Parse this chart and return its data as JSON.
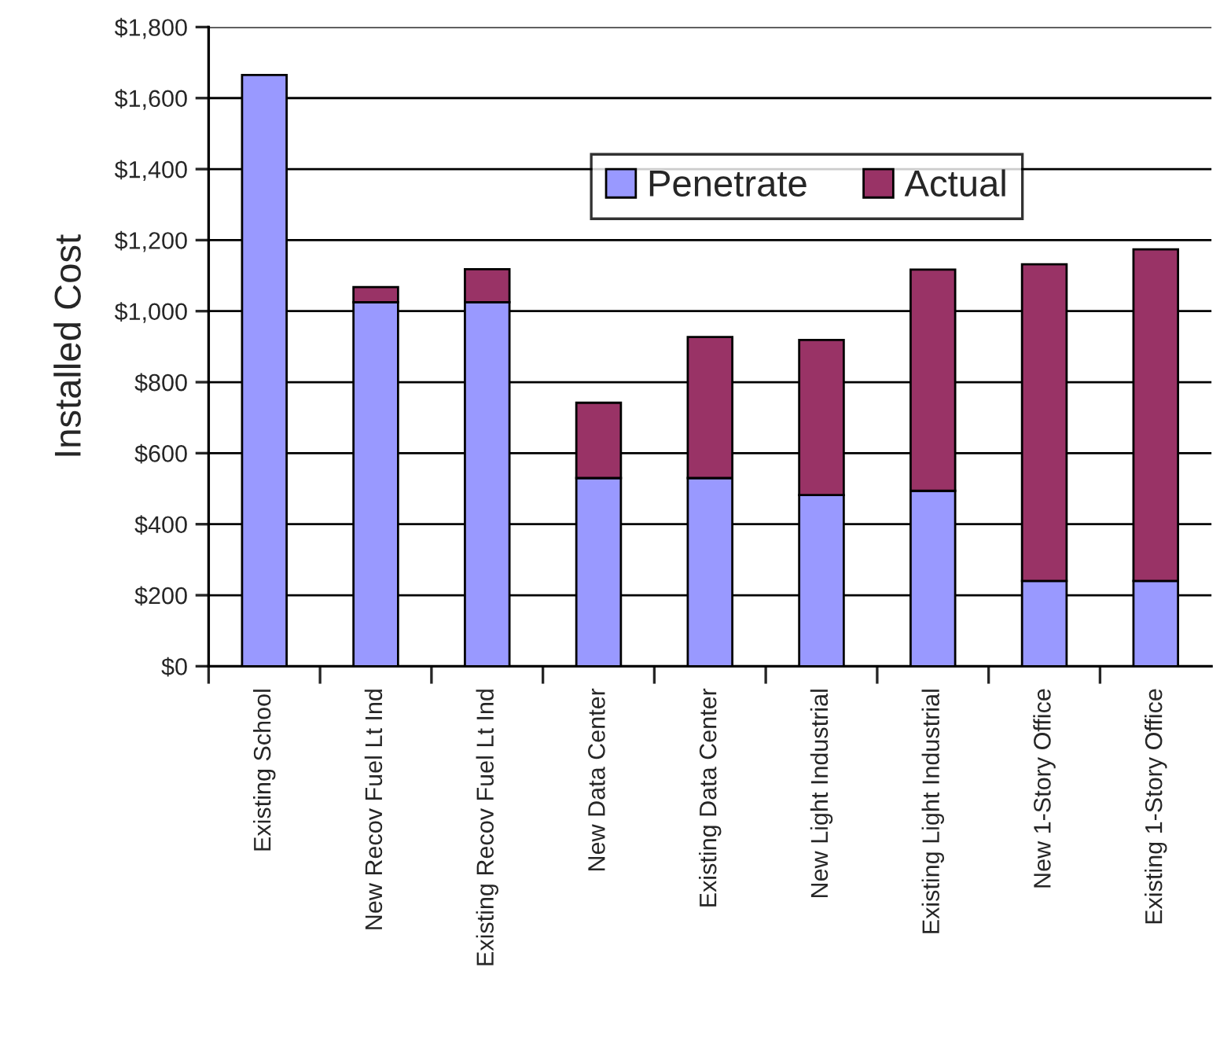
{
  "chart_data": {
    "type": "bar",
    "stacked": true,
    "ylabel": "Installed Cost",
    "categories": [
      "Existing School",
      "New Recov Fuel Lt Ind",
      "Existing Recov Fuel Lt Ind",
      "New Data Center",
      "Existing Data Center",
      "New Light Industrial",
      "Existing Light Industrial",
      "New 1-Story Office",
      "Existing 1-Story Office"
    ],
    "series": [
      {
        "name": "Penetrate",
        "color": "#9999ff",
        "values": [
          1665,
          1025,
          1025,
          530,
          530,
          482,
          494,
          240,
          240
        ]
      },
      {
        "name": "Actual",
        "color": "#993366",
        "values": [
          null,
          43,
          93,
          212,
          397,
          437,
          623,
          892,
          934
        ]
      }
    ],
    "ylim": [
      0,
      1800
    ],
    "yticks": [
      {
        "value": 0,
        "label": "$0"
      },
      {
        "value": 200,
        "label": "$200"
      },
      {
        "value": 400,
        "label": "$400"
      },
      {
        "value": 600,
        "label": "$600"
      },
      {
        "value": 800,
        "label": "$800"
      },
      {
        "value": 1000,
        "label": "$1,000"
      },
      {
        "value": 1200,
        "label": "$1,200"
      },
      {
        "value": 1400,
        "label": "$1,400"
      },
      {
        "value": 1600,
        "label": "$1,600"
      },
      {
        "value": 1800,
        "label": "$1,800"
      }
    ],
    "grid": "y",
    "legend": "top right"
  }
}
